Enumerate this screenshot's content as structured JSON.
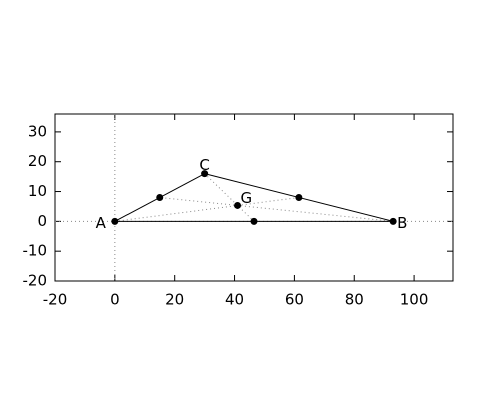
{
  "chart_data": {
    "type": "scatter",
    "x": [
      0,
      93,
      30,
      41,
      46.5,
      15,
      61.5
    ],
    "y": [
      0,
      0,
      16,
      5.33,
      0,
      8,
      8
    ],
    "point_labels": [
      "A",
      "B",
      "C",
      "G",
      null,
      null,
      null
    ],
    "color": "#000000",
    "xlim": [
      -20,
      113
    ],
    "xticks": [
      -20,
      0,
      20,
      40,
      60,
      80,
      100
    ],
    "ylim": [
      -20,
      36
    ],
    "yticks": [
      -20,
      -10,
      0,
      10,
      20,
      30
    ],
    "zeroaxis": true
  }
}
